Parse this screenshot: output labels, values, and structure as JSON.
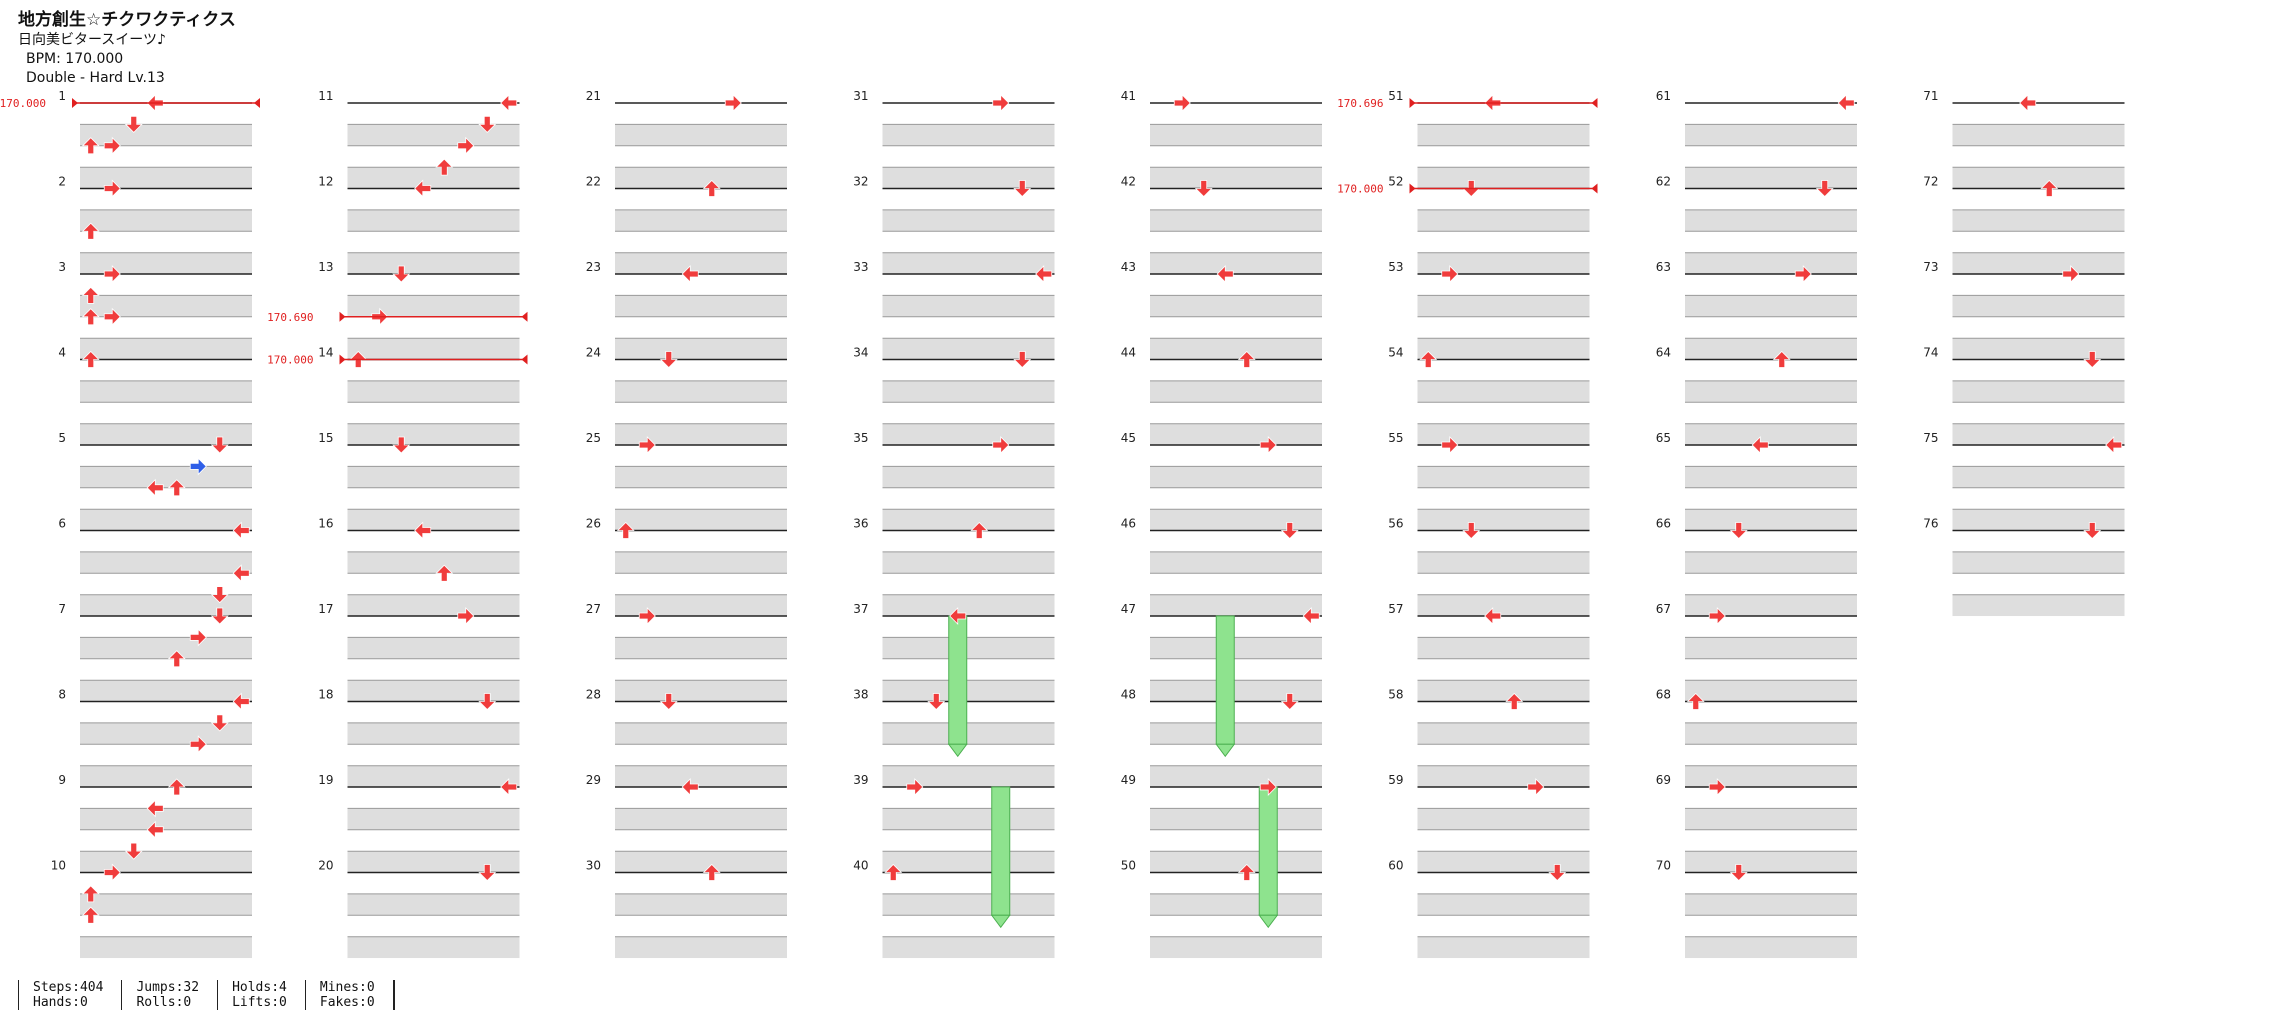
{
  "header": {
    "title": "地方創生☆チクワクティクス",
    "artist": "日向美ビタースイーツ♪",
    "bpm_line": "BPM: 170.000",
    "difficulty_line": "Double - Hard  Lv.13"
  },
  "bpm_markers": [
    {
      "measure": 1,
      "label": "170.000"
    },
    {
      "measure": 13.5,
      "label": "170.690"
    },
    {
      "measure": 14,
      "label": "170.000"
    },
    {
      "measure": 51,
      "label": "170.696"
    },
    {
      "measure": 52,
      "label": "170.000"
    }
  ],
  "colors": {
    "red_note": "#f03c3c",
    "blue_note": "#2f5fe8",
    "purple_note": "#b13ce8",
    "yellow_note": "#f6d21a",
    "hold_fill": "#8ee38e",
    "bpm_line": "#e02020",
    "band_gray": "#dedede"
  },
  "chart_data": {
    "type": "table",
    "measures_total": 76,
    "measures_per_column": 10,
    "columns": 8,
    "lanes": 8,
    "notes": [
      {
        "m": 1.0,
        "lane": 3,
        "c": "red",
        "kind": "arrow"
      },
      {
        "m": 1.25,
        "lane": 2,
        "c": "red",
        "kind": "arrow"
      },
      {
        "m": 1.5,
        "lane": 1,
        "c": "red",
        "kind": "arrow"
      },
      {
        "m": 1.5,
        "lane": 0,
        "c": "red",
        "kind": "arrow"
      },
      {
        "m": 2.0,
        "lane": 1,
        "c": "red",
        "kind": "arrow"
      },
      {
        "m": 2.5,
        "lane": 0,
        "c": "red",
        "kind": "arrow"
      },
      {
        "m": 3.0,
        "lane": 1,
        "c": "red",
        "kind": "arrow"
      },
      {
        "m": 3.25,
        "lane": 0,
        "c": "red",
        "kind": "arrow"
      },
      {
        "m": 3.5,
        "lane": 0,
        "c": "red",
        "kind": "arrow"
      },
      {
        "m": 3.5,
        "lane": 1,
        "c": "red",
        "kind": "arrow"
      },
      {
        "m": 4.0,
        "lane": 0,
        "c": "red",
        "kind": "arrow"
      },
      {
        "m": 5.0,
        "lane": 6,
        "c": "red",
        "kind": "arrow"
      },
      {
        "m": 5.25,
        "lane": 5,
        "c": "blue",
        "kind": "arrow"
      },
      {
        "m": 5.5,
        "lane": 4,
        "c": "red",
        "kind": "arrow"
      },
      {
        "m": 5.5,
        "lane": 3,
        "c": "red",
        "kind": "arrow"
      },
      {
        "m": 6.0,
        "lane": 7,
        "c": "red",
        "kind": "arrow"
      },
      {
        "m": 6.5,
        "lane": 7,
        "c": "red",
        "kind": "arrow"
      },
      {
        "m": 6.75,
        "lane": 6,
        "c": "red",
        "kind": "arrow"
      },
      {
        "m": 7.0,
        "lane": 6,
        "c": "red",
        "kind": "arrow"
      },
      {
        "m": 7.25,
        "lane": 5,
        "c": "red",
        "kind": "arrow"
      },
      {
        "m": 7.5,
        "lane": 4,
        "c": "red",
        "kind": "arrow"
      },
      {
        "m": 8.0,
        "lane": 7,
        "c": "red",
        "kind": "arrow"
      },
      {
        "m": 8.25,
        "lane": 6,
        "c": "red",
        "kind": "arrow"
      },
      {
        "m": 8.5,
        "lane": 5,
        "c": "red",
        "kind": "arrow"
      },
      {
        "m": 9.0,
        "lane": 4,
        "c": "red",
        "kind": "arrow"
      },
      {
        "m": 9.25,
        "lane": 3,
        "c": "red",
        "kind": "arrow"
      },
      {
        "m": 9.5,
        "lane": 3,
        "c": "red",
        "kind": "arrow"
      },
      {
        "m": 9.75,
        "lane": 2,
        "c": "red",
        "kind": "arrow"
      },
      {
        "m": 10.0,
        "lane": 1,
        "c": "red",
        "kind": "arrow"
      },
      {
        "m": 10.25,
        "lane": 0,
        "c": "red",
        "kind": "arrow"
      },
      {
        "m": 10.5,
        "lane": 0,
        "c": "red",
        "kind": "arrow"
      },
      {
        "m": 11.0,
        "lane": 7,
        "c": "red",
        "kind": "arrow"
      },
      {
        "m": 11.25,
        "lane": 6,
        "c": "red",
        "kind": "arrow"
      },
      {
        "m": 11.5,
        "lane": 5,
        "c": "red",
        "kind": "arrow"
      },
      {
        "m": 11.75,
        "lane": 4,
        "c": "red",
        "kind": "arrow"
      },
      {
        "m": 12.0,
        "lane": 3,
        "c": "red",
        "kind": "arrow"
      },
      {
        "m": 13.0,
        "lane": 2,
        "c": "red",
        "kind": "arrow"
      },
      {
        "m": 13.5,
        "lane": 1,
        "c": "red",
        "kind": "arrow"
      },
      {
        "m": 14.0,
        "lane": 0,
        "c": "red",
        "kind": "arrow"
      },
      {
        "m": 15.0,
        "lane": 2,
        "c": "red",
        "kind": "arrow"
      },
      {
        "m": 16.0,
        "lane": 3,
        "c": "red",
        "kind": "arrow"
      },
      {
        "m": 16.5,
        "lane": 4,
        "c": "red",
        "kind": "arrow"
      },
      {
        "m": 17.0,
        "lane": 5,
        "c": "red",
        "kind": "arrow"
      },
      {
        "m": 18.0,
        "lane": 6,
        "c": "red",
        "kind": "arrow"
      },
      {
        "m": 19.0,
        "lane": 7,
        "c": "red",
        "kind": "arrow"
      },
      {
        "m": 20.0,
        "lane": 6,
        "c": "red",
        "kind": "arrow"
      },
      {
        "m": 21.0,
        "lane": 5,
        "c": "red",
        "kind": "arrow"
      },
      {
        "m": 22.0,
        "lane": 4,
        "c": "red",
        "kind": "arrow"
      },
      {
        "m": 23.0,
        "lane": 3,
        "c": "red",
        "kind": "arrow"
      },
      {
        "m": 24.0,
        "lane": 2,
        "c": "red",
        "kind": "arrow"
      },
      {
        "m": 25.0,
        "lane": 1,
        "c": "red",
        "kind": "arrow"
      },
      {
        "m": 26.0,
        "lane": 0,
        "c": "red",
        "kind": "arrow"
      },
      {
        "m": 27.0,
        "lane": 1,
        "c": "red",
        "kind": "arrow"
      },
      {
        "m": 28.0,
        "lane": 2,
        "c": "red",
        "kind": "arrow"
      },
      {
        "m": 29.0,
        "lane": 3,
        "c": "red",
        "kind": "arrow"
      },
      {
        "m": 30.0,
        "lane": 4,
        "c": "red",
        "kind": "arrow"
      },
      {
        "m": 31.0,
        "lane": 5,
        "c": "red",
        "kind": "arrow"
      },
      {
        "m": 32.0,
        "lane": 6,
        "c": "red",
        "kind": "arrow"
      },
      {
        "m": 33.0,
        "lane": 7,
        "c": "red",
        "kind": "arrow"
      },
      {
        "m": 34.0,
        "lane": 6,
        "c": "red",
        "kind": "arrow"
      },
      {
        "m": 35.0,
        "lane": 5,
        "c": "red",
        "kind": "arrow"
      },
      {
        "m": 36.0,
        "lane": 4,
        "c": "red",
        "kind": "arrow"
      },
      {
        "m": 37.0,
        "lane": 3,
        "c": "red",
        "kind": "arrow"
      },
      {
        "m": 38.0,
        "lane": 2,
        "c": "red",
        "kind": "arrow"
      },
      {
        "m": 39.0,
        "lane": 1,
        "c": "red",
        "kind": "arrow"
      },
      {
        "m": 40.0,
        "lane": 0,
        "c": "red",
        "kind": "arrow"
      },
      {
        "m": 41.0,
        "lane": 1,
        "c": "red",
        "kind": "arrow"
      },
      {
        "m": 42.0,
        "lane": 2,
        "c": "red",
        "kind": "arrow"
      },
      {
        "m": 43.0,
        "lane": 3,
        "c": "red",
        "kind": "arrow"
      },
      {
        "m": 44.0,
        "lane": 4,
        "c": "red",
        "kind": "arrow"
      },
      {
        "m": 45.0,
        "lane": 5,
        "c": "red",
        "kind": "arrow"
      },
      {
        "m": 46.0,
        "lane": 6,
        "c": "red",
        "kind": "arrow"
      },
      {
        "m": 47.0,
        "lane": 7,
        "c": "red",
        "kind": "arrow"
      },
      {
        "m": 48.0,
        "lane": 6,
        "c": "red",
        "kind": "arrow"
      },
      {
        "m": 49.0,
        "lane": 5,
        "c": "red",
        "kind": "arrow"
      },
      {
        "m": 50.0,
        "lane": 4,
        "c": "red",
        "kind": "arrow"
      },
      {
        "m": 51.0,
        "lane": 3,
        "c": "red",
        "kind": "arrow"
      },
      {
        "m": 52.0,
        "lane": 2,
        "c": "red",
        "kind": "arrow"
      },
      {
        "m": 53.0,
        "lane": 1,
        "c": "red",
        "kind": "arrow"
      },
      {
        "m": 54.0,
        "lane": 0,
        "c": "red",
        "kind": "arrow"
      },
      {
        "m": 55.0,
        "lane": 1,
        "c": "red",
        "kind": "arrow"
      },
      {
        "m": 56.0,
        "lane": 2,
        "c": "red",
        "kind": "arrow"
      },
      {
        "m": 57.0,
        "lane": 3,
        "c": "red",
        "kind": "arrow"
      },
      {
        "m": 58.0,
        "lane": 4,
        "c": "red",
        "kind": "arrow"
      },
      {
        "m": 59.0,
        "lane": 5,
        "c": "red",
        "kind": "arrow"
      },
      {
        "m": 60.0,
        "lane": 6,
        "c": "red",
        "kind": "arrow"
      },
      {
        "m": 61.0,
        "lane": 7,
        "c": "red",
        "kind": "arrow"
      },
      {
        "m": 62.0,
        "lane": 6,
        "c": "red",
        "kind": "arrow"
      },
      {
        "m": 63.0,
        "lane": 5,
        "c": "red",
        "kind": "arrow"
      },
      {
        "m": 64.0,
        "lane": 4,
        "c": "red",
        "kind": "arrow"
      },
      {
        "m": 65.0,
        "lane": 3,
        "c": "red",
        "kind": "arrow"
      },
      {
        "m": 66.0,
        "lane": 2,
        "c": "red",
        "kind": "arrow"
      },
      {
        "m": 67.0,
        "lane": 1,
        "c": "red",
        "kind": "arrow"
      },
      {
        "m": 68.0,
        "lane": 0,
        "c": "red",
        "kind": "arrow"
      },
      {
        "m": 69.0,
        "lane": 1,
        "c": "red",
        "kind": "arrow"
      },
      {
        "m": 70.0,
        "lane": 2,
        "c": "red",
        "kind": "arrow"
      },
      {
        "m": 71.0,
        "lane": 3,
        "c": "red",
        "kind": "arrow"
      },
      {
        "m": 72.0,
        "lane": 4,
        "c": "red",
        "kind": "arrow"
      },
      {
        "m": 73.0,
        "lane": 5,
        "c": "red",
        "kind": "arrow"
      },
      {
        "m": 74.0,
        "lane": 6,
        "c": "red",
        "kind": "arrow"
      },
      {
        "m": 75.0,
        "lane": 7,
        "c": "red",
        "kind": "arrow"
      },
      {
        "m": 76.0,
        "lane": 6,
        "c": "red",
        "kind": "arrow"
      }
    ],
    "holds": [
      {
        "m_start": 37.0,
        "m_end": 38.5,
        "lane": 3
      },
      {
        "m_start": 39.0,
        "m_end": 40.5,
        "lane": 5
      },
      {
        "m_start": 47.0,
        "m_end": 48.5,
        "lane": 3
      },
      {
        "m_start": 49.0,
        "m_end": 50.5,
        "lane": 5
      }
    ]
  },
  "stats": {
    "steps": "Steps:404",
    "hands": "Hands:0",
    "jumps": "Jumps:32",
    "rolls": "Rolls:0",
    "holds": "Holds:4",
    "lifts": "Lifts:0",
    "mines": "Mines:0",
    "fakes": "Fakes:0"
  }
}
